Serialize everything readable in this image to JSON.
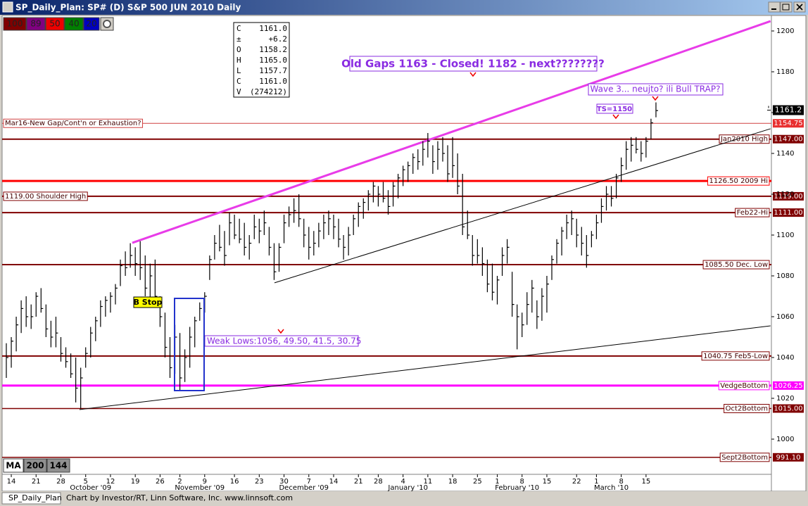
{
  "window": {
    "title": "SP_Daily_Plan: SP# (D) S&P 500 JUN 2010 Daily",
    "toolbar": [
      "100",
      "89",
      "50",
      "40",
      "20"
    ],
    "data_window": [
      [
        "C",
        "1161.0"
      ],
      [
        "±",
        "+6.2"
      ],
      [
        "O",
        "1158.2"
      ],
      [
        "H",
        "1165.0"
      ],
      [
        "L",
        "1157.7"
      ],
      [
        "C",
        "1161.0"
      ],
      [
        "V",
        "(274212)"
      ]
    ],
    "ma_buttons": [
      "MA",
      "200",
      "144"
    ],
    "status_tab": "SP_Daily_Plan",
    "status_text": "Chart by Investor/RT, Linn Software, Inc. www.linnsoft.com"
  },
  "chart_data": {
    "type": "hlc",
    "ylim": [
      983.45,
      1207.59
    ],
    "yticks": [
      1000,
      1020,
      1040,
      1060,
      1080,
      1100,
      1120,
      1140,
      1160,
      1180,
      1200
    ],
    "xlim": [
      -0.85,
      154.28
    ],
    "xticks": [
      {
        "value": 1,
        "label": "14"
      },
      {
        "value": 6,
        "label": "21"
      },
      {
        "value": 11,
        "label": "28"
      },
      {
        "value": 16,
        "label": "5"
      },
      {
        "value": 21,
        "label": "12"
      },
      {
        "value": 26,
        "label": "19"
      },
      {
        "value": 31,
        "label": "26"
      },
      {
        "value": 35,
        "label": "2"
      },
      {
        "value": 40,
        "label": "9"
      },
      {
        "value": 46,
        "label": "16"
      },
      {
        "value": 51,
        "label": "23"
      },
      {
        "value": 56,
        "label": "30"
      },
      {
        "value": 61,
        "label": "7"
      },
      {
        "value": 66,
        "label": "14"
      },
      {
        "value": 71,
        "label": "21"
      },
      {
        "value": 75,
        "label": "28"
      },
      {
        "value": 80,
        "label": "4"
      },
      {
        "value": 85,
        "label": "11"
      },
      {
        "value": 90,
        "label": "18"
      },
      {
        "value": 95,
        "label": "25"
      },
      {
        "value": 99,
        "label": "1"
      },
      {
        "value": 104,
        "label": "8"
      },
      {
        "value": 109,
        "label": "15"
      },
      {
        "value": 115,
        "label": "22"
      },
      {
        "value": 119,
        "label": "1"
      },
      {
        "value": 124,
        "label": "8"
      },
      {
        "value": 129,
        "label": "15"
      }
    ],
    "months": [
      {
        "value": 17,
        "label": "October '09"
      },
      {
        "value": 39,
        "label": "November '09"
      },
      {
        "value": 60,
        "label": "December '09"
      },
      {
        "value": 81,
        "label": "January '10"
      },
      {
        "value": 103,
        "label": "February '10"
      },
      {
        "value": 122,
        "label": "March '10"
      }
    ],
    "color": "#000000",
    "high": [
      1047,
      1050,
      1060,
      1068,
      1070,
      1066,
      1072,
      1074,
      1066,
      1058,
      1060,
      1050,
      1045,
      1042,
      1040,
      1035,
      1045,
      1055,
      1060,
      1068,
      1070,
      1072,
      1076,
      1088,
      1092,
      1096,
      1094,
      1097,
      1090,
      1086,
      1088,
      1070,
      1062,
      1050,
      1056,
      1052,
      1044,
      1055,
      1060,
      1067,
      1072,
      1090,
      1100,
      1105,
      1102,
      1111,
      1110,
      1108,
      1106,
      1100,
      1110,
      1108,
      1112,
      1104,
      1096,
      1096,
      1110,
      1114,
      1118,
      1120,
      1108,
      1104,
      1102,
      1106,
      1110,
      1112,
      1110,
      1108,
      1100,
      1104,
      1110,
      1116,
      1118,
      1122,
      1126,
      1124,
      1126,
      1122,
      1126,
      1130,
      1134,
      1136,
      1140,
      1142,
      1146,
      1150,
      1144,
      1146,
      1148,
      1144,
      1148,
      1140,
      1130,
      1112,
      1100,
      1098,
      1094,
      1088,
      1086,
      1080,
      1094,
      1098,
      1082,
      1066,
      1062,
      1072,
      1078,
      1068,
      1074,
      1080,
      1090,
      1098,
      1104,
      1110,
      1112,
      1108,
      1104,
      1100,
      1102,
      1110,
      1118,
      1124,
      1124,
      1130,
      1138,
      1146,
      1148,
      1148,
      1146,
      1148,
      1157,
      1165
    ],
    "low": [
      1030,
      1035,
      1043,
      1052,
      1055,
      1054,
      1060,
      1062,
      1050,
      1045,
      1045,
      1038,
      1035,
      1030,
      1018,
      1015,
      1035,
      1040,
      1048,
      1055,
      1060,
      1062,
      1066,
      1075,
      1080,
      1084,
      1080,
      1078,
      1070,
      1068,
      1066,
      1055,
      1040,
      1030,
      1032,
      1024,
      1028,
      1035,
      1045,
      1058,
      1062,
      1078,
      1088,
      1092,
      1085,
      1095,
      1098,
      1096,
      1090,
      1088,
      1098,
      1096,
      1100,
      1090,
      1078,
      1082,
      1096,
      1104,
      1106,
      1104,
      1094,
      1088,
      1090,
      1094,
      1098,
      1100,
      1098,
      1094,
      1088,
      1090,
      1100,
      1104,
      1108,
      1112,
      1116,
      1114,
      1116,
      1110,
      1114,
      1118,
      1124,
      1126,
      1130,
      1132,
      1134,
      1138,
      1130,
      1132,
      1136,
      1126,
      1128,
      1120,
      1100,
      1098,
      1085,
      1086,
      1080,
      1072,
      1068,
      1066,
      1080,
      1086,
      1060,
      1044,
      1050,
      1056,
      1062,
      1054,
      1058,
      1062,
      1078,
      1086,
      1090,
      1098,
      1100,
      1094,
      1090,
      1084,
      1094,
      1098,
      1106,
      1112,
      1114,
      1118,
      1126,
      1132,
      1136,
      1140,
      1136,
      1138,
      1147,
      1157.7
    ],
    "close": [
      1040,
      1048,
      1056,
      1064,
      1060,
      1060,
      1070,
      1064,
      1054,
      1050,
      1052,
      1042,
      1038,
      1032,
      1025,
      1030,
      1042,
      1052,
      1058,
      1065,
      1068,
      1070,
      1074,
      1085,
      1084,
      1090,
      1086,
      1084,
      1074,
      1080,
      1070,
      1060,
      1045,
      1035,
      1050,
      1030,
      1040,
      1050,
      1058,
      1064,
      1070,
      1088,
      1096,
      1094,
      1090,
      1106,
      1100,
      1098,
      1094,
      1096,
      1104,
      1102,
      1106,
      1094,
      1082,
      1094,
      1106,
      1110,
      1112,
      1108,
      1100,
      1094,
      1096,
      1102,
      1106,
      1108,
      1104,
      1098,
      1094,
      1100,
      1108,
      1114,
      1116,
      1120,
      1124,
      1120,
      1118,
      1114,
      1124,
      1128,
      1132,
      1134,
      1138,
      1136,
      1142,
      1146,
      1136,
      1142,
      1140,
      1130,
      1134,
      1124,
      1104,
      1100,
      1090,
      1090,
      1086,
      1076,
      1072,
      1078,
      1090,
      1094,
      1066,
      1060,
      1056,
      1066,
      1074,
      1060,
      1070,
      1076,
      1088,
      1096,
      1102,
      1106,
      1108,
      1100,
      1096,
      1090,
      1100,
      1106,
      1114,
      1120,
      1118,
      1128,
      1134,
      1142,
      1144,
      1142,
      1140,
      1146,
      1155,
      1161
    ],
    "last": {
      "value": 1161.2,
      "label": "1161.2"
    },
    "levels": [
      {
        "text": "Mar16-New Gap/Cont'n or Exhaustion?",
        "price": {
          "value": 1154.75,
          "label": "1154.75"
        },
        "color": "#d04040",
        "tag_color": "#e83030",
        "width": 1,
        "label_position": "left"
      },
      {
        "text": "Jan2010 High",
        "price": {
          "value": 1147,
          "label": "1147.00"
        },
        "color": "#800000",
        "tag_color": "#800000",
        "width": 2,
        "label_position": "right"
      },
      {
        "text": "1126.50 2009 Hi",
        "price": 1126.5,
        "color": "#ff0000",
        "width": 3,
        "label_position": "right"
      },
      {
        "text": "1119.00 Shoulder High",
        "price": {
          "value": 1119,
          "label": "1119.00"
        },
        "color": "#800000",
        "tag_color": "#800000",
        "width": 2,
        "label_position": "left"
      },
      {
        "text": "Feb22-Hi",
        "price": {
          "value": 1111,
          "label": "1111.00"
        },
        "color": "#800000",
        "tag_color": "#800000",
        "width": 2,
        "label_position": "right"
      },
      {
        "text": "1085.50 Dec. Low",
        "price": 1085.5,
        "color": "#800000",
        "width": 2,
        "label_position": "right"
      },
      {
        "text": "1040.75 Feb5-Low",
        "price": 1040.75,
        "color": "#800000",
        "width": 2,
        "label_position": "right"
      },
      {
        "text": "VedgeBottom",
        "price": {
          "value": 1026.25,
          "label": "1026.25"
        },
        "color": "#ff00ff",
        "tag_color": "#ff00ff",
        "width": 3,
        "label_position": "right"
      },
      {
        "text": "Oct2Bottom",
        "price": {
          "value": 1015,
          "label": "1015.00"
        },
        "color": "#800000",
        "tag_color": "#800000",
        "width": 1.5,
        "label_position": "right"
      },
      {
        "text": "Sept2Bottom",
        "price": {
          "value": 991.1,
          "label": "991.10"
        },
        "color": "#800000",
        "tag_color": "#800000",
        "width": 1.5,
        "label_position": "right"
      }
    ],
    "trendlines": [
      {
        "x": [
          25.4,
          154.1
        ],
        "y": [
          1096.2,
          1204.8
        ],
        "color": "#e83ce8",
        "width": 3
      },
      {
        "x": [
          54.07,
          154.1
        ],
        "y": [
          1076.6,
          1152.1
        ],
        "color": "#000000",
        "width": 1
      },
      {
        "x": [
          14.76,
          154.1
        ],
        "y": [
          1014.5,
          1055.5
        ],
        "color": "#000000",
        "width": 1
      }
    ],
    "annotations": [
      "Old Gaps 1163 - Closed! 1182 - next????????",
      "Wave 3... neujto? ili Bull TRAP?",
      "TS=1150",
      "Weak Lows:1056, 49.50, 41.5, 30.75",
      "B Stop"
    ]
  }
}
